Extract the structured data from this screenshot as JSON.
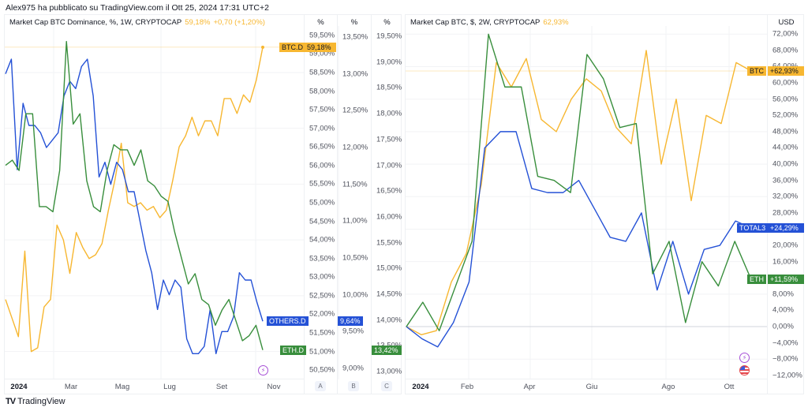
{
  "publisher_line": "Alex975 ha pubblicato su TradingView.com il Ott 25, 2024 17:31 UTC+2",
  "footer_brand": "TradingView",
  "footer_logo": "TV",
  "colors": {
    "gold": "#f7b731",
    "blue": "#2451d6",
    "green": "#388e3c",
    "grid": "#f2f3f5",
    "axis_text": "#50535e"
  },
  "chart_data": [
    {
      "type": "line",
      "title": "Market Cap BTC Dominance, %, 1W, CRYPTOCAP",
      "legend_value": "59,18%",
      "legend_change": "+0,70 (+1,20%)",
      "x_labels": [
        "2024",
        "Mar",
        "Mag",
        "Lug",
        "Set",
        "Nov"
      ],
      "axes": [
        {
          "id": "A",
          "header": "%",
          "ylim": [
            50.25,
            59.75
          ],
          "ticks": [
            "59,50%",
            "59,00%",
            "58,50%",
            "58,00%",
            "57,50%",
            "57,00%",
            "56,50%",
            "56,00%",
            "55,50%",
            "55,00%",
            "54,50%",
            "54,00%",
            "53,50%",
            "53,00%",
            "52,50%",
            "52,00%",
            "51,50%",
            "51,00%",
            "50,50%"
          ],
          "tick_values": [
            59.5,
            59,
            58.5,
            58,
            57.5,
            57,
            56.5,
            56,
            55.5,
            55,
            54.5,
            54,
            53.5,
            53,
            52.5,
            52,
            51.5,
            51,
            50.5
          ]
        },
        {
          "id": "B",
          "header": "%",
          "ylim": [
            8.85,
            13.65
          ],
          "ticks": [
            "13,50%",
            "13,00%",
            "12,50%",
            "12,00%",
            "11,50%",
            "11,00%",
            "10,50%",
            "10,00%",
            "9,50%",
            "9,00%"
          ],
          "tick_values": [
            13.5,
            13,
            12.5,
            12,
            11.5,
            11,
            10.5,
            10,
            9.5,
            9
          ]
        },
        {
          "id": "C",
          "header": "%",
          "ylim": [
            12.85,
            19.7
          ],
          "ticks": [
            "19,50%",
            "19,00%",
            "18,50%",
            "18,00%",
            "17,50%",
            "17,00%",
            "16,50%",
            "16,00%",
            "15,50%",
            "15,00%",
            "14,50%",
            "14,00%",
            "13,50%",
            "13,00%"
          ],
          "tick_values": [
            19.5,
            19,
            18.5,
            18,
            17.5,
            17,
            16.5,
            16,
            15.5,
            15,
            14.5,
            14,
            13.5,
            13
          ]
        }
      ],
      "series": [
        {
          "name": "BTC.D",
          "axis": "A",
          "color": "#f7b731",
          "last_label": "59,18%",
          "values": [
            52.4,
            51.9,
            51.4,
            53.7,
            51.0,
            51.1,
            52.2,
            52.4,
            54.4,
            54.0,
            53.1,
            54.2,
            53.8,
            53.5,
            53.6,
            53.9,
            54.8,
            55.6,
            56.6,
            55.0,
            54.9,
            55.0,
            54.8,
            54.9,
            54.6,
            54.8,
            55.6,
            56.5,
            56.8,
            57.3,
            56.8,
            57.2,
            57.2,
            56.8,
            57.8,
            57.8,
            57.4,
            57.9,
            57.7,
            58.3,
            59.18
          ]
        },
        {
          "name": "OTHERS.D",
          "axis": "B",
          "color": "#2451d6",
          "last_label": "9,64%",
          "values": [
            13.0,
            13.2,
            11.7,
            12.6,
            12.3,
            12.3,
            12.2,
            12.0,
            12.1,
            12.2,
            12.7,
            12.9,
            12.8,
            13.1,
            13.2,
            12.7,
            11.6,
            11.8,
            11.5,
            11.8,
            11.7,
            11.4,
            11.4,
            11.0,
            10.6,
            10.3,
            9.8,
            10.2,
            10.0,
            10.2,
            10.1,
            9.4,
            9.2,
            9.2,
            9.3,
            9.8,
            9.2,
            9.5,
            9.5,
            9.7,
            10.3,
            10.2,
            10.2,
            9.9,
            9.64
          ]
        },
        {
          "name": "ETH.D",
          "axis": "C",
          "color": "#388e3c",
          "last_label": "13,42%",
          "values": [
            17.0,
            17.1,
            16.9,
            18.0,
            18.0,
            16.2,
            16.2,
            16.1,
            16.9,
            19.4,
            17.8,
            18.0,
            16.7,
            16.2,
            16.1,
            16.9,
            17.4,
            17.3,
            17.3,
            17.0,
            17.3,
            16.7,
            16.6,
            16.4,
            16.3,
            15.7,
            15.2,
            14.7,
            14.9,
            14.4,
            14.3,
            13.9,
            14.2,
            14.4,
            14.0,
            13.6,
            13.7,
            13.9,
            13.42
          ]
        }
      ],
      "marker_icon": "lightning-icon"
    },
    {
      "type": "line",
      "title": "Market Cap BTC, $, 2W, CRYPTOCAP",
      "legend_value": "62,93%",
      "x_labels": [
        "2024",
        "Feb",
        "Apr",
        "Giu",
        "Ago",
        "Ott"
      ],
      "axes": [
        {
          "id": "USD",
          "header": "USD",
          "ylim": [
            -13,
            74
          ],
          "ticks": [
            "72,00%",
            "68,00%",
            "64,00%",
            "60,00%",
            "56,00%",
            "52,00%",
            "48,00%",
            "44,00%",
            "40,00%",
            "36,00%",
            "32,00%",
            "28,00%",
            "24,00%",
            "20,00%",
            "16,00%",
            "12,00%",
            "8,00%",
            "4,00%",
            "0,00%",
            "−4,00%",
            "−8,00%",
            "−12,00%"
          ],
          "tick_values": [
            72,
            68,
            64,
            60,
            56,
            52,
            48,
            44,
            40,
            36,
            32,
            28,
            24,
            20,
            16,
            12,
            8,
            4,
            0,
            -4,
            -8,
            -12
          ]
        }
      ],
      "series": [
        {
          "name": "BTC",
          "color": "#f7b731",
          "last_label": "+62,93%",
          "values": [
            0,
            -2,
            -1,
            11,
            18,
            35,
            65,
            59,
            66,
            51,
            48,
            56,
            61,
            58,
            49,
            45,
            68,
            40,
            56,
            31,
            52,
            50,
            65,
            62.93
          ]
        },
        {
          "name": "TOTAL3",
          "color": "#2451d6",
          "last_label": "+24,29%",
          "values": [
            0,
            -3,
            -5,
            1,
            11,
            44,
            48,
            48,
            34,
            33,
            33,
            36,
            29,
            22,
            21,
            28,
            9,
            21,
            8,
            19,
            20,
            26,
            24.29
          ]
        },
        {
          "name": "ETH",
          "color": "#388e3c",
          "last_label": "+11,59%",
          "values": [
            0,
            6,
            -1,
            10,
            21,
            72,
            59,
            59,
            37,
            36,
            33,
            67,
            61,
            49,
            50,
            13,
            21,
            1,
            16,
            10,
            21,
            11.59
          ]
        }
      ],
      "marker_icons": [
        "lightning-icon",
        "us-flag-icon"
      ]
    }
  ]
}
